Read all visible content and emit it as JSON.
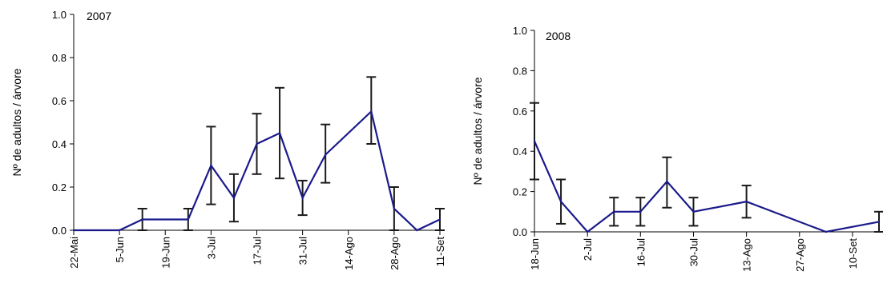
{
  "chart_data": [
    {
      "type": "line",
      "title": "2007",
      "xlabel": "",
      "ylabel": "Nº de adultos / árvore",
      "ylim": [
        0,
        1.0
      ],
      "yticks": [
        "0.0",
        "0.2",
        "0.4",
        "0.6",
        "0.8",
        "1.0"
      ],
      "xlim": [
        "2007-05-22",
        "2007-09-11"
      ],
      "xticks": [
        {
          "date": "2007-05-22",
          "label": "22-Mai"
        },
        {
          "date": "2007-06-05",
          "label": "5-Jun"
        },
        {
          "date": "2007-06-19",
          "label": "19-Jun"
        },
        {
          "date": "2007-07-03",
          "label": "3-Jul"
        },
        {
          "date": "2007-07-17",
          "label": "17-Jul"
        },
        {
          "date": "2007-07-31",
          "label": "31-Jul"
        },
        {
          "date": "2007-08-14",
          "label": "14-Ago"
        },
        {
          "date": "2007-08-28",
          "label": "28-Ago"
        },
        {
          "date": "2007-09-11",
          "label": "11-Set"
        }
      ],
      "grid": false,
      "line_color": "#1a1a8c",
      "series": [
        {
          "x": [
            "2007-05-22",
            "2007-06-05",
            "2007-06-12",
            "2007-06-26",
            "2007-07-03",
            "2007-07-10",
            "2007-07-17",
            "2007-07-24",
            "2007-07-31",
            "2007-08-07",
            "2007-08-21",
            "2007-08-28",
            "2007-09-04",
            "2007-09-11"
          ],
          "y": [
            0.0,
            0.0,
            0.05,
            0.05,
            0.3,
            0.15,
            0.4,
            0.45,
            0.15,
            0.35,
            0.55,
            0.1,
            0.0,
            0.05
          ],
          "err_low": [
            null,
            null,
            0.0,
            0.0,
            0.12,
            0.04,
            0.26,
            0.24,
            0.07,
            0.22,
            0.4,
            0.0,
            null,
            0.0
          ],
          "err_high": [
            null,
            null,
            0.1,
            0.1,
            0.48,
            0.26,
            0.54,
            0.66,
            0.23,
            0.49,
            0.71,
            0.2,
            null,
            0.1
          ]
        }
      ]
    },
    {
      "type": "line",
      "title": "2008",
      "xlabel": "",
      "ylabel": "Nº de adultos / árvore",
      "ylim": [
        0,
        1.0
      ],
      "yticks": [
        "0.0",
        "0.2",
        "0.4",
        "0.6",
        "0.8",
        "1.0"
      ],
      "xlim": [
        "2008-06-18",
        "2008-09-17"
      ],
      "xticks": [
        {
          "date": "2008-06-18",
          "label": "18-Jun"
        },
        {
          "date": "2008-07-02",
          "label": "2-Jul"
        },
        {
          "date": "2008-07-16",
          "label": "16-Jul"
        },
        {
          "date": "2008-07-30",
          "label": "30-Jul"
        },
        {
          "date": "2008-08-13",
          "label": "13-Ago"
        },
        {
          "date": "2008-08-27",
          "label": "27-Ago"
        },
        {
          "date": "2008-09-10",
          "label": "10-Set"
        }
      ],
      "grid": false,
      "line_color": "#1a1a8c",
      "series": [
        {
          "x": [
            "2008-06-18",
            "2008-06-25",
            "2008-07-02",
            "2008-07-09",
            "2008-07-16",
            "2008-07-23",
            "2008-07-30",
            "2008-08-13",
            "2008-09-03",
            "2008-09-17"
          ],
          "y": [
            0.45,
            0.15,
            0.0,
            0.1,
            0.1,
            0.25,
            0.1,
            0.15,
            0.0,
            0.05
          ],
          "err_low": [
            0.26,
            0.04,
            null,
            0.03,
            0.03,
            0.12,
            0.03,
            0.07,
            null,
            0.0
          ],
          "err_high": [
            0.64,
            0.26,
            null,
            0.17,
            0.17,
            0.37,
            0.17,
            0.23,
            null,
            0.1
          ]
        }
      ]
    }
  ]
}
